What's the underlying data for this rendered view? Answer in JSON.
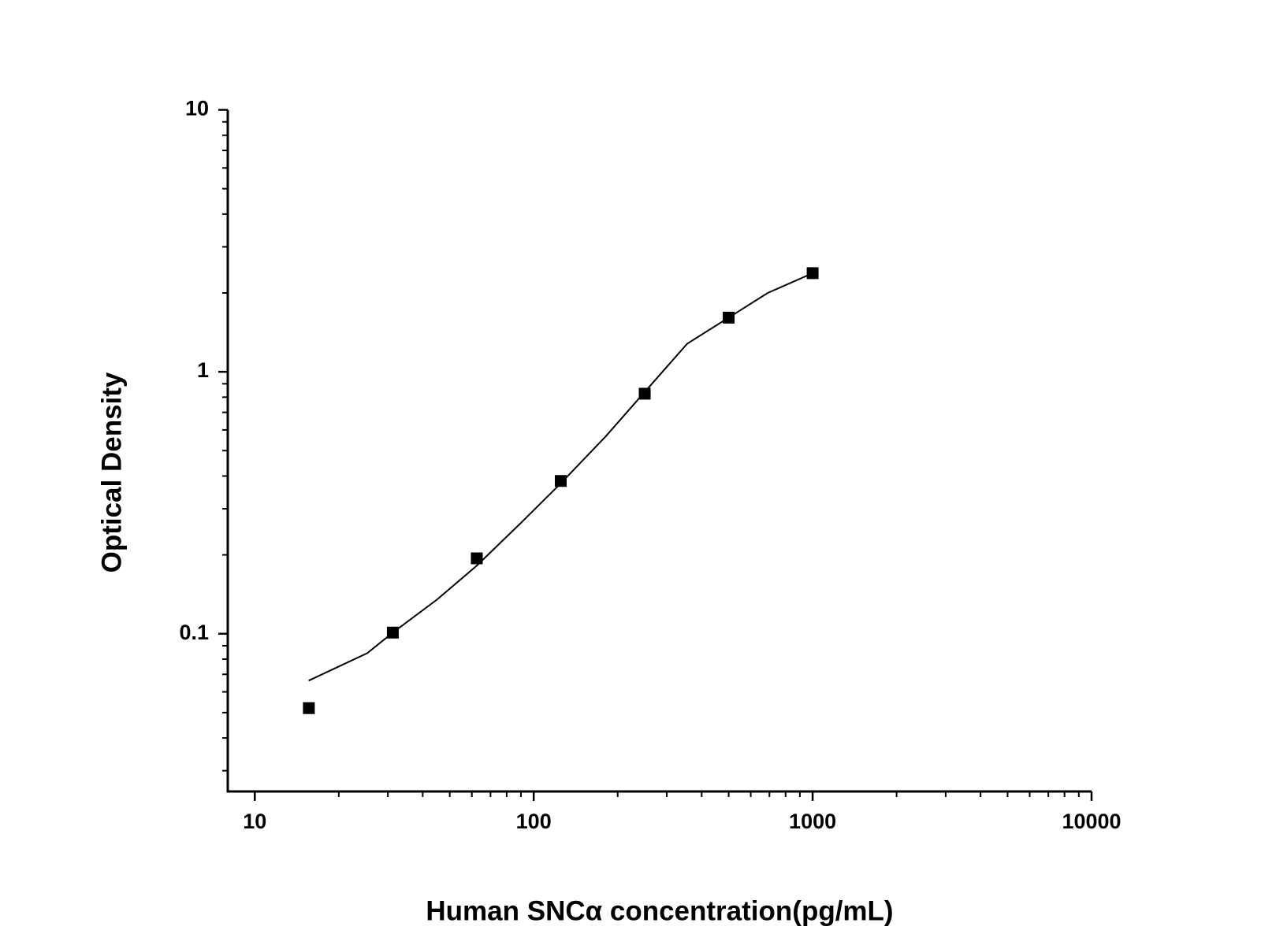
{
  "chart_data": {
    "type": "scatter",
    "x_label": "Human SNCα  concentration(pg/mL)",
    "y_label": "Optical Density",
    "x_log": true,
    "y_log": true,
    "xlim": [
      8,
      10000
    ],
    "ylim": [
      0.025,
      10
    ],
    "xticks": [
      10,
      100,
      1000,
      10000
    ],
    "yticks": [
      0.1,
      1,
      10
    ],
    "xminorticks": [
      20,
      30,
      40,
      50,
      60,
      70,
      80,
      90,
      200,
      300,
      400,
      500,
      600,
      700,
      800,
      900,
      2000,
      3000,
      4000,
      5000,
      6000,
      7000,
      8000,
      9000
    ],
    "yminorticks": [
      0.03,
      0.04,
      0.05,
      0.06,
      0.07,
      0.08,
      0.09,
      0.2,
      0.3,
      0.4,
      0.5,
      0.6,
      0.7,
      0.8,
      0.9,
      2,
      3,
      4,
      5,
      6,
      7,
      8,
      9
    ],
    "series": [
      {
        "color": "#000000",
        "marker": "square",
        "x": [
          15.625,
          31.25,
          62.5,
          125,
          250,
          500,
          1000
        ],
        "values": [
          0.052,
          0.101,
          0.194,
          0.383,
          0.825,
          1.61,
          2.38
        ]
      },
      {
        "color": "#000000",
        "marker": "line",
        "x": [
          15.6,
          25.3,
          31.25,
          45,
          62.5,
          90,
          125,
          181,
          250,
          355,
          500,
          690,
          1000
        ],
        "values": [
          0.0662,
          0.0843,
          0.101,
          0.135,
          0.182,
          0.265,
          0.375,
          0.566,
          0.837,
          1.28,
          1.61,
          2.0,
          2.38
        ]
      }
    ]
  }
}
